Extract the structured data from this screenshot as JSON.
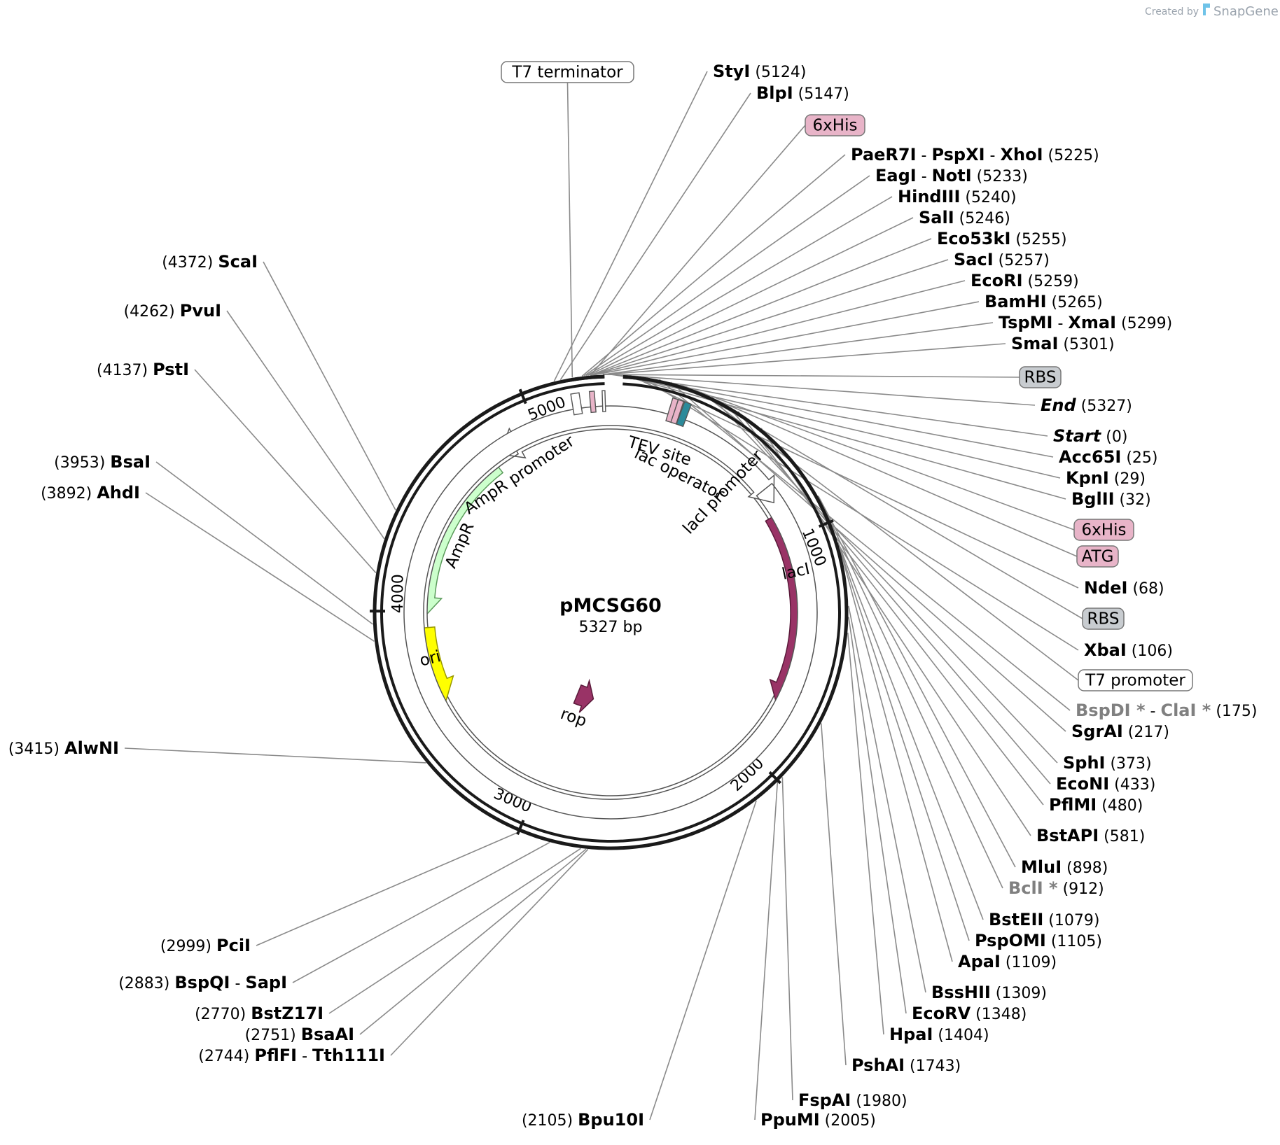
{
  "credit": {
    "prefix": "Created by",
    "brand": "SnapGene"
  },
  "plasmid": {
    "name": "pMCSG60",
    "length_label": "5327 bp",
    "length": 5327
  },
  "colors": {
    "backbone": "#1a1a1a",
    "ampr": "#ccffcc",
    "ori": "#ffff00",
    "lacI": "#993366",
    "rop": "#993366",
    "his_tag": "#e8b4c8",
    "rbs_tag": "#c8ccd0",
    "tev": "#2c8a9a"
  },
  "ticks": [
    {
      "label": "1000",
      "pos": 1000
    },
    {
      "label": "2000",
      "pos": 2000
    },
    {
      "label": "3000",
      "pos": 3000
    },
    {
      "label": "4000",
      "pos": 4000
    },
    {
      "label": "5000",
      "pos": 5000
    }
  ],
  "features": [
    {
      "id": "ampr",
      "label": "AmpR"
    },
    {
      "id": "ampr-promoter",
      "label": "AmpR promoter"
    },
    {
      "id": "ori",
      "label": "ori"
    },
    {
      "id": "lacI",
      "label": "lacI"
    },
    {
      "id": "lacI-promoter",
      "label": "lacI promoter"
    },
    {
      "id": "rop",
      "label": "rop"
    },
    {
      "id": "tev",
      "label": "TEV site"
    },
    {
      "id": "lac-operator",
      "label": "lac operator"
    }
  ],
  "boxed_labels": [
    {
      "id": "t7-terminator",
      "text": "T7 terminator",
      "style": "white"
    },
    {
      "id": "his-top",
      "text": "6xHis",
      "style": "pink"
    },
    {
      "id": "rbs-top",
      "text": "RBS",
      "style": "gray"
    },
    {
      "id": "his-right",
      "text": "6xHis",
      "style": "pink"
    },
    {
      "id": "atg",
      "text": "ATG",
      "style": "pink"
    },
    {
      "id": "rbs-right",
      "text": "RBS",
      "style": "gray"
    },
    {
      "id": "t7-promoter",
      "text": "T7 promoter",
      "style": "white"
    }
  ],
  "sites_right": [
    {
      "names": [
        "StyI"
      ],
      "pos": "(5124)"
    },
    {
      "names": [
        "BlpI"
      ],
      "pos": "(5147)"
    },
    {
      "names": [
        "PaeR7I",
        "PspXI",
        "XhoI"
      ],
      "pos": "(5225)"
    },
    {
      "names": [
        "EagI",
        "NotI"
      ],
      "pos": "(5233)"
    },
    {
      "names": [
        "HindIII"
      ],
      "pos": "(5240)"
    },
    {
      "names": [
        "SalI"
      ],
      "pos": "(5246)"
    },
    {
      "names": [
        "Eco53kI"
      ],
      "pos": "(5255)"
    },
    {
      "names": [
        "SacI"
      ],
      "pos": "(5257)"
    },
    {
      "names": [
        "EcoRI"
      ],
      "pos": "(5259)"
    },
    {
      "names": [
        "BamHI"
      ],
      "pos": "(5265)"
    },
    {
      "names": [
        "TspMI",
        "XmaI"
      ],
      "pos": "(5299)"
    },
    {
      "names": [
        "SmaI"
      ],
      "pos": "(5301)"
    },
    {
      "names": [
        "End"
      ],
      "pos": "(5327)",
      "italic": true
    },
    {
      "names": [
        "Start"
      ],
      "pos": "(0)",
      "italic": true
    },
    {
      "names": [
        "Acc65I"
      ],
      "pos": "(25)"
    },
    {
      "names": [
        "KpnI"
      ],
      "pos": "(29)"
    },
    {
      "names": [
        "BglII"
      ],
      "pos": "(32)"
    },
    {
      "names": [
        "NdeI"
      ],
      "pos": "(68)"
    },
    {
      "names": [
        "XbaI"
      ],
      "pos": "(106)"
    },
    {
      "names": [
        "BspDI *",
        "ClaI *"
      ],
      "pos": "(175)",
      "dim": true
    },
    {
      "names": [
        "SgrAI"
      ],
      "pos": "(217)"
    },
    {
      "names": [
        "SphI"
      ],
      "pos": "(373)"
    },
    {
      "names": [
        "EcoNI"
      ],
      "pos": "(433)"
    },
    {
      "names": [
        "PflMI"
      ],
      "pos": "(480)"
    },
    {
      "names": [
        "BstAPI"
      ],
      "pos": "(581)"
    },
    {
      "names": [
        "MluI"
      ],
      "pos": "(898)"
    },
    {
      "names": [
        "BclI *"
      ],
      "pos": "(912)",
      "dim": true
    },
    {
      "names": [
        "BstEII"
      ],
      "pos": "(1079)"
    },
    {
      "names": [
        "PspOMI"
      ],
      "pos": "(1105)"
    },
    {
      "names": [
        "ApaI"
      ],
      "pos": "(1109)"
    },
    {
      "names": [
        "BssHII"
      ],
      "pos": "(1309)"
    },
    {
      "names": [
        "EcoRV"
      ],
      "pos": "(1348)"
    },
    {
      "names": [
        "HpaI"
      ],
      "pos": "(1404)"
    },
    {
      "names": [
        "PshAI"
      ],
      "pos": "(1743)"
    },
    {
      "names": [
        "FspAI"
      ],
      "pos": "(1980)"
    },
    {
      "names": [
        "PpuMI"
      ],
      "pos": "(2005)"
    }
  ],
  "sites_left": [
    {
      "names": [
        "ScaI"
      ],
      "pos": "(4372)"
    },
    {
      "names": [
        "PvuI"
      ],
      "pos": "(4262)"
    },
    {
      "names": [
        "PstI"
      ],
      "pos": "(4137)"
    },
    {
      "names": [
        "BsaI"
      ],
      "pos": "(3953)"
    },
    {
      "names": [
        "AhdI"
      ],
      "pos": "(3892)"
    },
    {
      "names": [
        "AlwNI"
      ],
      "pos": "(3415)"
    },
    {
      "names": [
        "PciI"
      ],
      "pos": "(2999)"
    },
    {
      "names": [
        "BspQI",
        "SapI"
      ],
      "pos": "(2883)"
    },
    {
      "names": [
        "BstZ17I"
      ],
      "pos": "(2770)"
    },
    {
      "names": [
        "BsaAI"
      ],
      "pos": "(2751)"
    },
    {
      "names": [
        "PflFI",
        "Tth111I"
      ],
      "pos": "(2744)"
    },
    {
      "names": [
        "Bpu10I"
      ],
      "pos": "(2105)"
    }
  ]
}
